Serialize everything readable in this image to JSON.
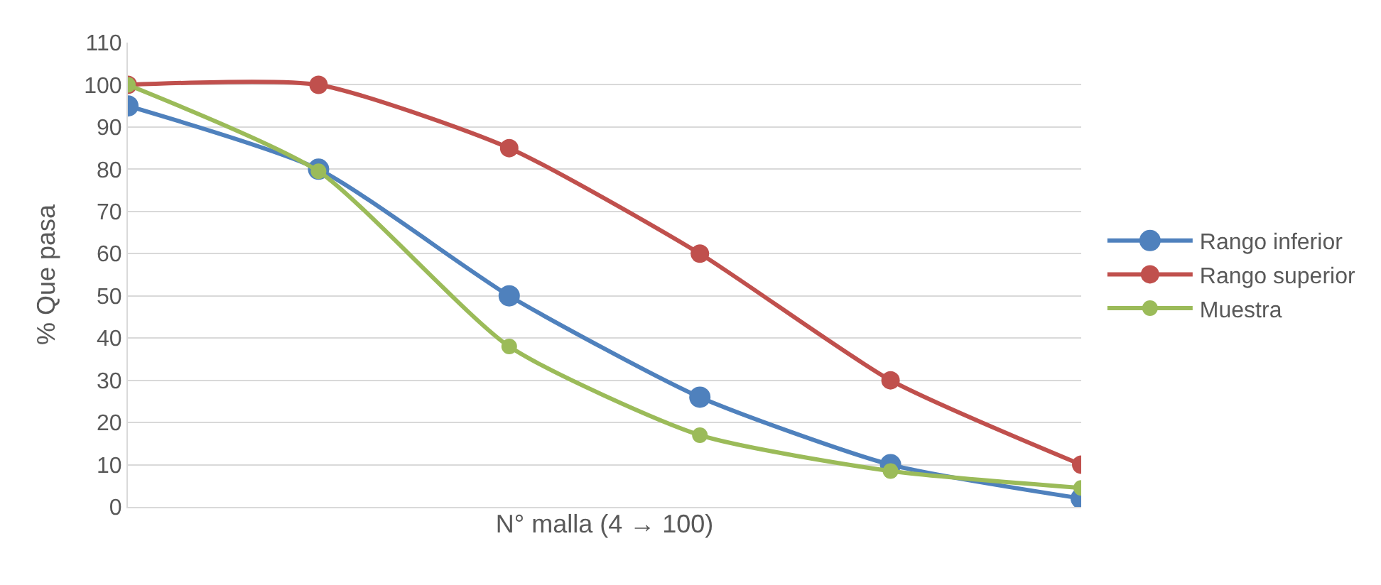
{
  "chart_data": {
    "type": "line",
    "xlabel": "N° malla (4 → 100)",
    "ylabel": "% Que pasa",
    "categories": [
      null,
      null,
      null,
      null,
      null,
      null
    ],
    "series": [
      {
        "name": "Rango inferior",
        "color": "#4f81bd",
        "values": [
          95,
          80,
          50,
          26,
          10,
          2
        ]
      },
      {
        "name": "Rango superior",
        "color": "#c0504d",
        "values": [
          100,
          100,
          85,
          60,
          30,
          10
        ]
      },
      {
        "name": "Muestra",
        "color": "#9bbb59",
        "values": [
          100,
          79.5,
          38,
          17,
          8.5,
          4.5
        ]
      }
    ],
    "ylim": [
      0,
      110
    ],
    "yticks": [
      0,
      10,
      20,
      30,
      40,
      50,
      60,
      70,
      80,
      90,
      100,
      110
    ],
    "grid": "y",
    "legend": "right",
    "marker": "circle",
    "line_style": "solid",
    "tick_labels": "y"
  }
}
